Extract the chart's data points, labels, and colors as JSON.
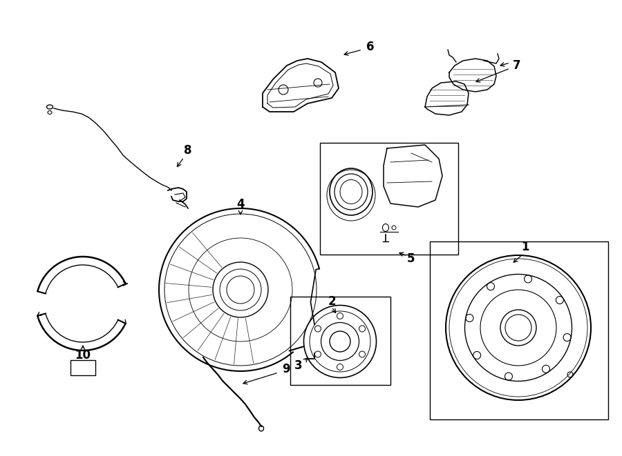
{
  "bg_color": "#ffffff",
  "line_color": "#000000",
  "fig_width": 9.0,
  "fig_height": 6.61,
  "dpi": 100,
  "label_fontsize": 12
}
